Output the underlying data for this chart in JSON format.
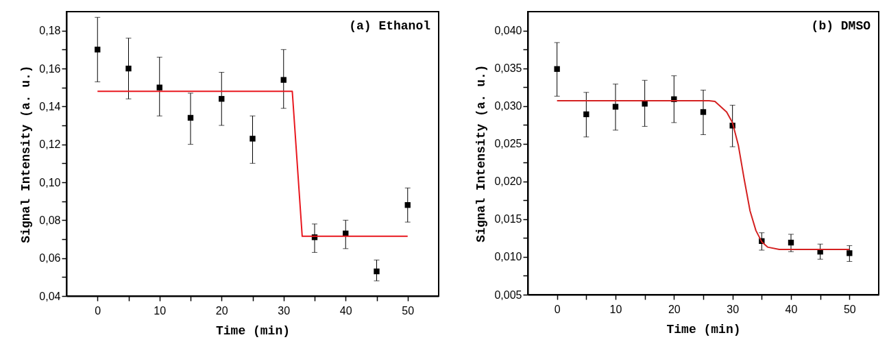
{
  "chart_data": [
    {
      "type": "scatter",
      "xlabel": "Time (min)",
      "ylabel": "Signal Intensity (a. u.)",
      "annotations": [
        "(a) Ethanol"
      ],
      "xlim": [
        -5,
        55
      ],
      "xticks": [
        0,
        {
          "value": 5,
          "label": null
        },
        10,
        {
          "value": 15,
          "label": null
        },
        20,
        {
          "value": 25,
          "label": null
        },
        30,
        {
          "value": 35,
          "label": null
        },
        40,
        {
          "value": 45,
          "label": null
        },
        50
      ],
      "ylim": [
        0.04,
        0.19
      ],
      "yticks": [
        {
          "value": 0.04,
          "label": "0,04"
        },
        {
          "value": 0.05,
          "label": null
        },
        {
          "value": 0.06,
          "label": "0,06"
        },
        {
          "value": 0.07,
          "label": null
        },
        {
          "value": 0.08,
          "label": "0,08"
        },
        {
          "value": 0.09,
          "label": null
        },
        {
          "value": 0.1,
          "label": "0,10"
        },
        {
          "value": 0.11,
          "label": null
        },
        {
          "value": 0.12,
          "label": "0,12"
        },
        {
          "value": 0.13,
          "label": null
        },
        {
          "value": 0.14,
          "label": "0,14"
        },
        {
          "value": 0.15,
          "label": null
        },
        {
          "value": 0.16,
          "label": "0,16"
        },
        {
          "value": 0.17,
          "label": null
        },
        {
          "value": 0.18,
          "label": "0,18"
        }
      ],
      "grid": false,
      "series": [
        {
          "marker": "square",
          "color": "#000000",
          "x": [
            0,
            5,
            10,
            15,
            20,
            25,
            30,
            35,
            40,
            45,
            50
          ],
          "values": [
            0.17,
            0.16,
            0.15,
            0.134,
            0.144,
            0.123,
            0.154,
            0.071,
            0.073,
            0.053,
            0.088
          ],
          "errors": [
            [
              0.153,
              0.187
            ],
            [
              0.144,
              0.176
            ],
            [
              0.135,
              0.166
            ],
            [
              0.12,
              0.147
            ],
            [
              0.13,
              0.158
            ],
            [
              0.11,
              0.135
            ],
            [
              0.139,
              0.17
            ],
            [
              0.063,
              0.078
            ],
            [
              0.065,
              0.08
            ],
            [
              0.048,
              0.059
            ],
            [
              0.079,
              0.097
            ]
          ]
        },
        {
          "type": "line",
          "color": "#e8171e",
          "x": [
            0,
            31.4,
            33,
            50
          ],
          "values": [
            0.148,
            0.148,
            0.0715,
            0.0715
          ]
        }
      ]
    },
    {
      "type": "scatter",
      "xlabel": "Time (min)",
      "ylabel": "Signal Intensity (a. u.)",
      "annotations": [
        "(b)  DMSO"
      ],
      "xlim": [
        -5,
        55
      ],
      "xticks": [
        0,
        {
          "value": 5,
          "label": null
        },
        10,
        {
          "value": 15,
          "label": null
        },
        20,
        {
          "value": 25,
          "label": null
        },
        30,
        {
          "value": 35,
          "label": null
        },
        40,
        {
          "value": 45,
          "label": null
        },
        50
      ],
      "ylim": [
        0.005,
        0.0425
      ],
      "yticks": [
        {
          "value": 0.005,
          "label": "0,005"
        },
        {
          "value": 0.0075,
          "label": null
        },
        {
          "value": 0.01,
          "label": "0,010"
        },
        {
          "value": 0.0125,
          "label": null
        },
        {
          "value": 0.015,
          "label": "0,015"
        },
        {
          "value": 0.0175,
          "label": null
        },
        {
          "value": 0.02,
          "label": "0,020"
        },
        {
          "value": 0.0225,
          "label": null
        },
        {
          "value": 0.025,
          "label": "0,025"
        },
        {
          "value": 0.0275,
          "label": null
        },
        {
          "value": 0.03,
          "label": "0,030"
        },
        {
          "value": 0.0325,
          "label": null
        },
        {
          "value": 0.035,
          "label": "0,035"
        },
        {
          "value": 0.0375,
          "label": null
        },
        {
          "value": 0.04,
          "label": "0,040"
        }
      ],
      "grid": false,
      "series": [
        {
          "marker": "square",
          "color": "#000000",
          "x": [
            0,
            5,
            10,
            15,
            20,
            25,
            30,
            35,
            40,
            45,
            50
          ],
          "values": [
            0.0349,
            0.0289,
            0.0299,
            0.0303,
            0.0309,
            0.0292,
            0.0274,
            0.0121,
            0.0119,
            0.0107,
            0.0105
          ],
          "errors": [
            [
              0.0313,
              0.0384
            ],
            [
              0.0259,
              0.0318
            ],
            [
              0.0268,
              0.0329
            ],
            [
              0.0273,
              0.0334
            ],
            [
              0.0278,
              0.034
            ],
            [
              0.0262,
              0.0321
            ],
            [
              0.0246,
              0.0301
            ],
            [
              0.0109,
              0.0132
            ],
            [
              0.0107,
              0.013
            ],
            [
              0.0097,
              0.0117
            ],
            [
              0.0094,
              0.0115
            ]
          ]
        },
        {
          "type": "line",
          "color": "#d42020",
          "x": [
            0,
            26,
            27,
            28,
            29,
            30,
            31,
            32,
            33,
            34,
            35,
            36,
            38,
            40,
            50
          ],
          "values": [
            0.0307,
            0.0307,
            0.0306,
            0.0299,
            0.0292,
            0.0278,
            0.0248,
            0.0203,
            0.0161,
            0.0135,
            0.012,
            0.0113,
            0.011,
            0.011,
            0.011
          ]
        }
      ]
    }
  ]
}
